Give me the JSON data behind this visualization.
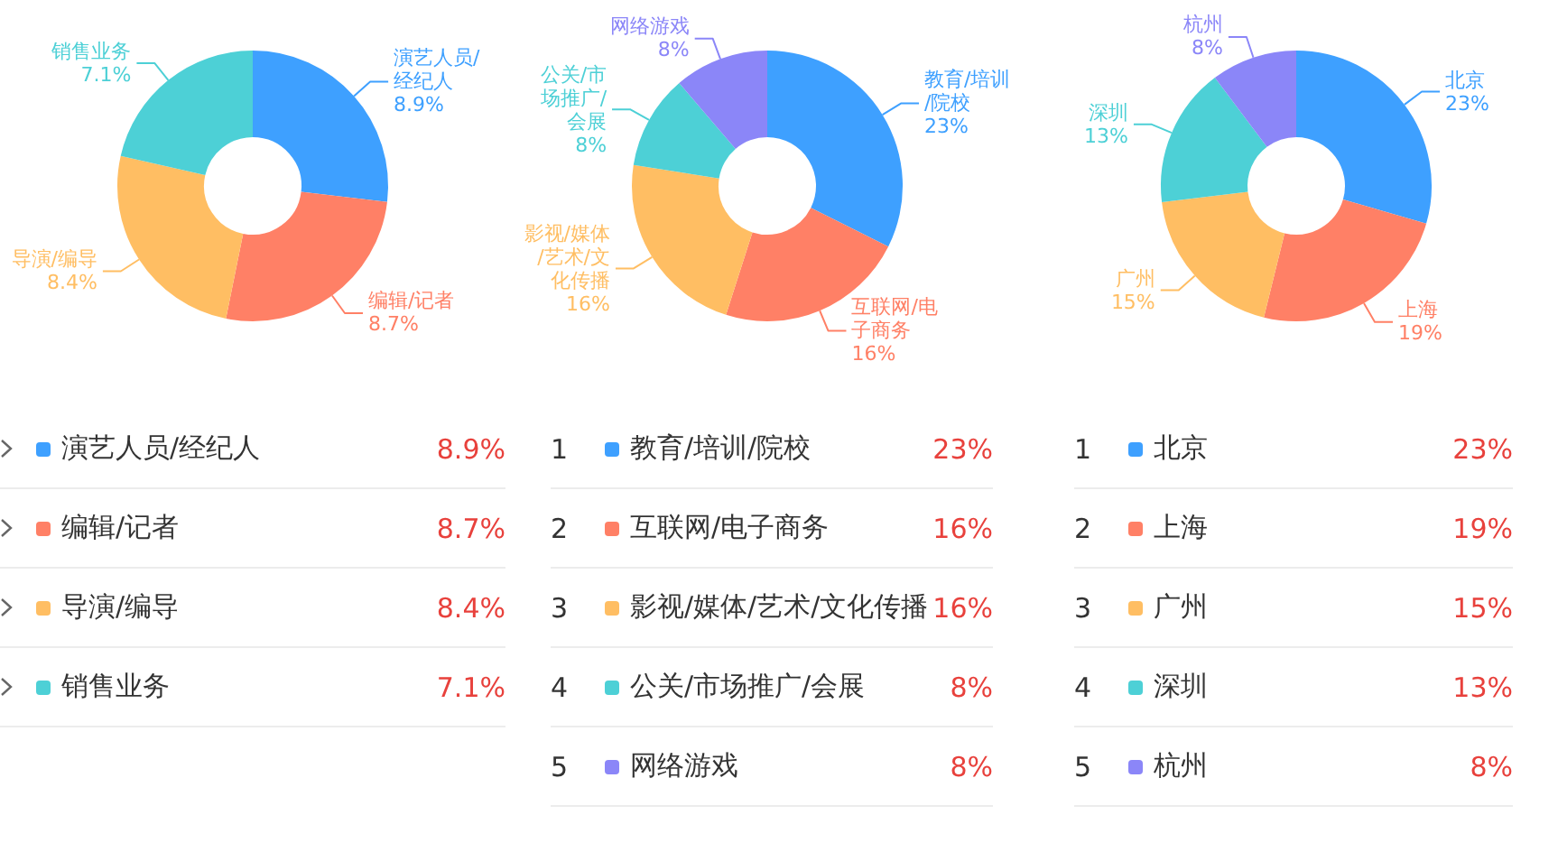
{
  "chart_data": [
    {
      "type": "donut",
      "categories": [
        "演艺人员/经纪人",
        "编辑/记者",
        "导演/编导",
        "销售业务"
      ],
      "values": [
        8.9,
        8.7,
        8.4,
        7.1
      ],
      "value_labels": [
        "8.9%",
        "8.7%",
        "8.4%",
        "7.1%"
      ],
      "colors": [
        "#3ea0ff",
        "#ff8066",
        "#ffbe63",
        "#4dd0d6"
      ],
      "legend": "bottom"
    },
    {
      "type": "donut",
      "categories": [
        "教育/培训/院校",
        "互联网/电子商务",
        "影视/媒体/艺术/文化传播",
        "公关/市场推广/会展",
        "网络游戏"
      ],
      "values": [
        23,
        16,
        16,
        8,
        8
      ],
      "value_labels": [
        "23%",
        "16%",
        "16%",
        "8%",
        "8%"
      ],
      "colors": [
        "#3ea0ff",
        "#ff8066",
        "#ffbe63",
        "#4dd0d6",
        "#8b86f8"
      ],
      "annotations": [
        "1",
        "2",
        "3",
        "4",
        "5"
      ],
      "legend": "bottom"
    },
    {
      "type": "donut",
      "categories": [
        "北京",
        "上海",
        "广州",
        "深圳",
        "杭州"
      ],
      "values": [
        23,
        19,
        15,
        13,
        8
      ],
      "value_labels": [
        "23%",
        "19%",
        "15%",
        "13%",
        "8%"
      ],
      "colors": [
        "#3ea0ff",
        "#ff8066",
        "#ffbe63",
        "#4dd0d6",
        "#8b86f8"
      ],
      "annotations": [
        "1",
        "2",
        "3",
        "4",
        "5"
      ],
      "legend": "bottom"
    }
  ]
}
